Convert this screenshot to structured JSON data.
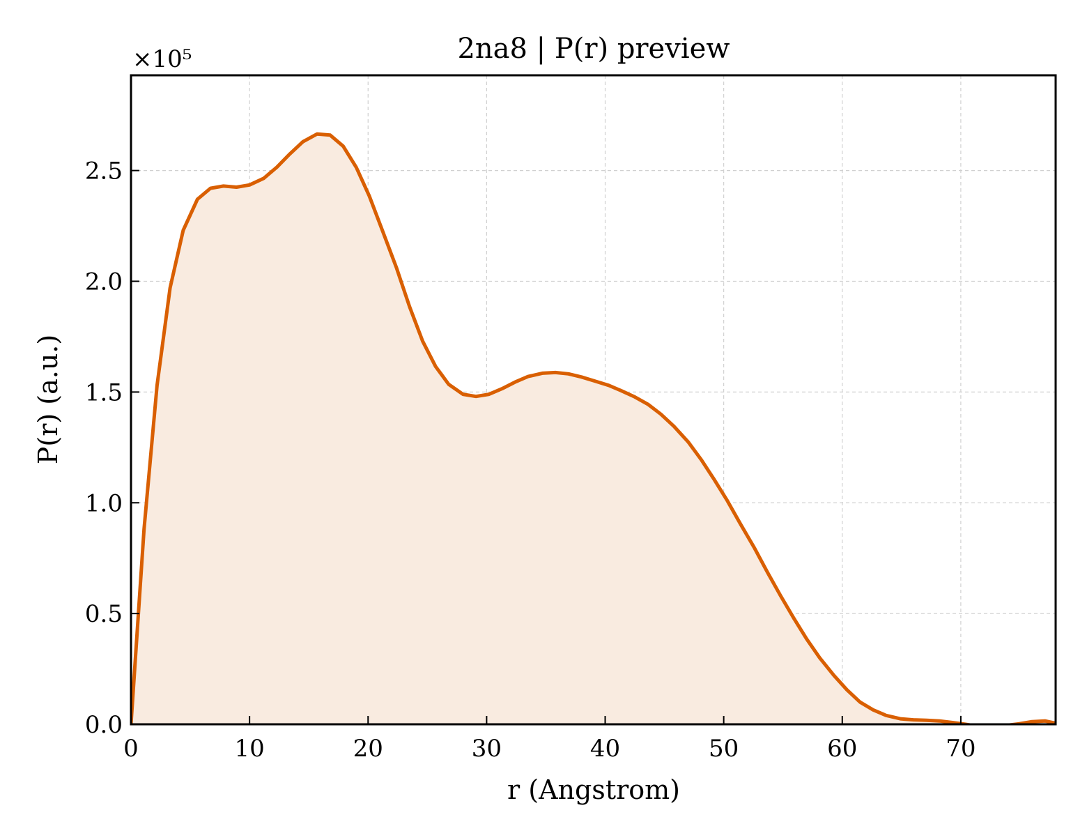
{
  "chart_data": {
    "type": "area",
    "title": "2na8 | P(r) preview",
    "xlabel": "r (Angstrom)",
    "ylabel": "P(r) (a.u.)",
    "y_scale_label": "×10⁵",
    "y_multiplier": 100000,
    "xlim": [
      0,
      78
    ],
    "ylim": [
      0,
      2.93
    ],
    "x_ticks": [
      0,
      10,
      20,
      30,
      40,
      50,
      60,
      70
    ],
    "y_ticks": [
      0.0,
      0.5,
      1.0,
      1.5,
      2.0,
      2.5
    ],
    "x_tick_labels": [
      "0",
      "10",
      "20",
      "30",
      "40",
      "50",
      "60",
      "70"
    ],
    "y_tick_labels": [
      "0.0",
      "0.5",
      "1.0",
      "1.5",
      "2.0",
      "2.5"
    ],
    "grid": true,
    "colors": {
      "line": "#d95f02",
      "fill": "#f9ebe0"
    },
    "series": [
      {
        "x": [
          0,
          1.1,
          2.2,
          3.3,
          4.4,
          5.6,
          6.7,
          7.8,
          8.9,
          10.0,
          11.2,
          12.3,
          13.4,
          14.5,
          15.7,
          16.8,
          17.9,
          19.0,
          20.1,
          21.2,
          22.4,
          23.5,
          24.6,
          25.7,
          26.8,
          28.0,
          29.1,
          30.2,
          31.3,
          32.4,
          33.5,
          34.7,
          35.8,
          36.9,
          38.0,
          39.1,
          40.3,
          41.4,
          42.5,
          43.6,
          44.7,
          45.8,
          47.0,
          48.1,
          49.2,
          50.3,
          51.4,
          52.6,
          53.7,
          54.8,
          55.9,
          57.0,
          58.1,
          59.3,
          60.4,
          61.5,
          62.6,
          63.7,
          64.9,
          66.0,
          67.1,
          68.2,
          69.3,
          70.4,
          71.6,
          72.7,
          73.8,
          74.9,
          76.0,
          77.1,
          78.0
        ],
        "values": [
          0.0,
          0.88,
          1.53,
          1.97,
          2.23,
          2.37,
          2.42,
          2.43,
          2.425,
          2.435,
          2.465,
          2.515,
          2.575,
          2.63,
          2.665,
          2.66,
          2.61,
          2.515,
          2.385,
          2.23,
          2.06,
          1.885,
          1.73,
          1.615,
          1.535,
          1.49,
          1.48,
          1.49,
          1.515,
          1.545,
          1.57,
          1.585,
          1.588,
          1.582,
          1.568,
          1.55,
          1.53,
          1.505,
          1.478,
          1.445,
          1.4,
          1.345,
          1.275,
          1.195,
          1.105,
          1.01,
          0.905,
          0.795,
          0.685,
          0.58,
          0.48,
          0.385,
          0.3,
          0.22,
          0.155,
          0.1,
          0.065,
          0.04,
          0.025,
          0.02,
          0.018,
          0.015,
          0.008,
          0.0,
          -0.01,
          -0.012,
          -0.005,
          0.002,
          0.012,
          0.015,
          0.005
        ]
      }
    ]
  }
}
